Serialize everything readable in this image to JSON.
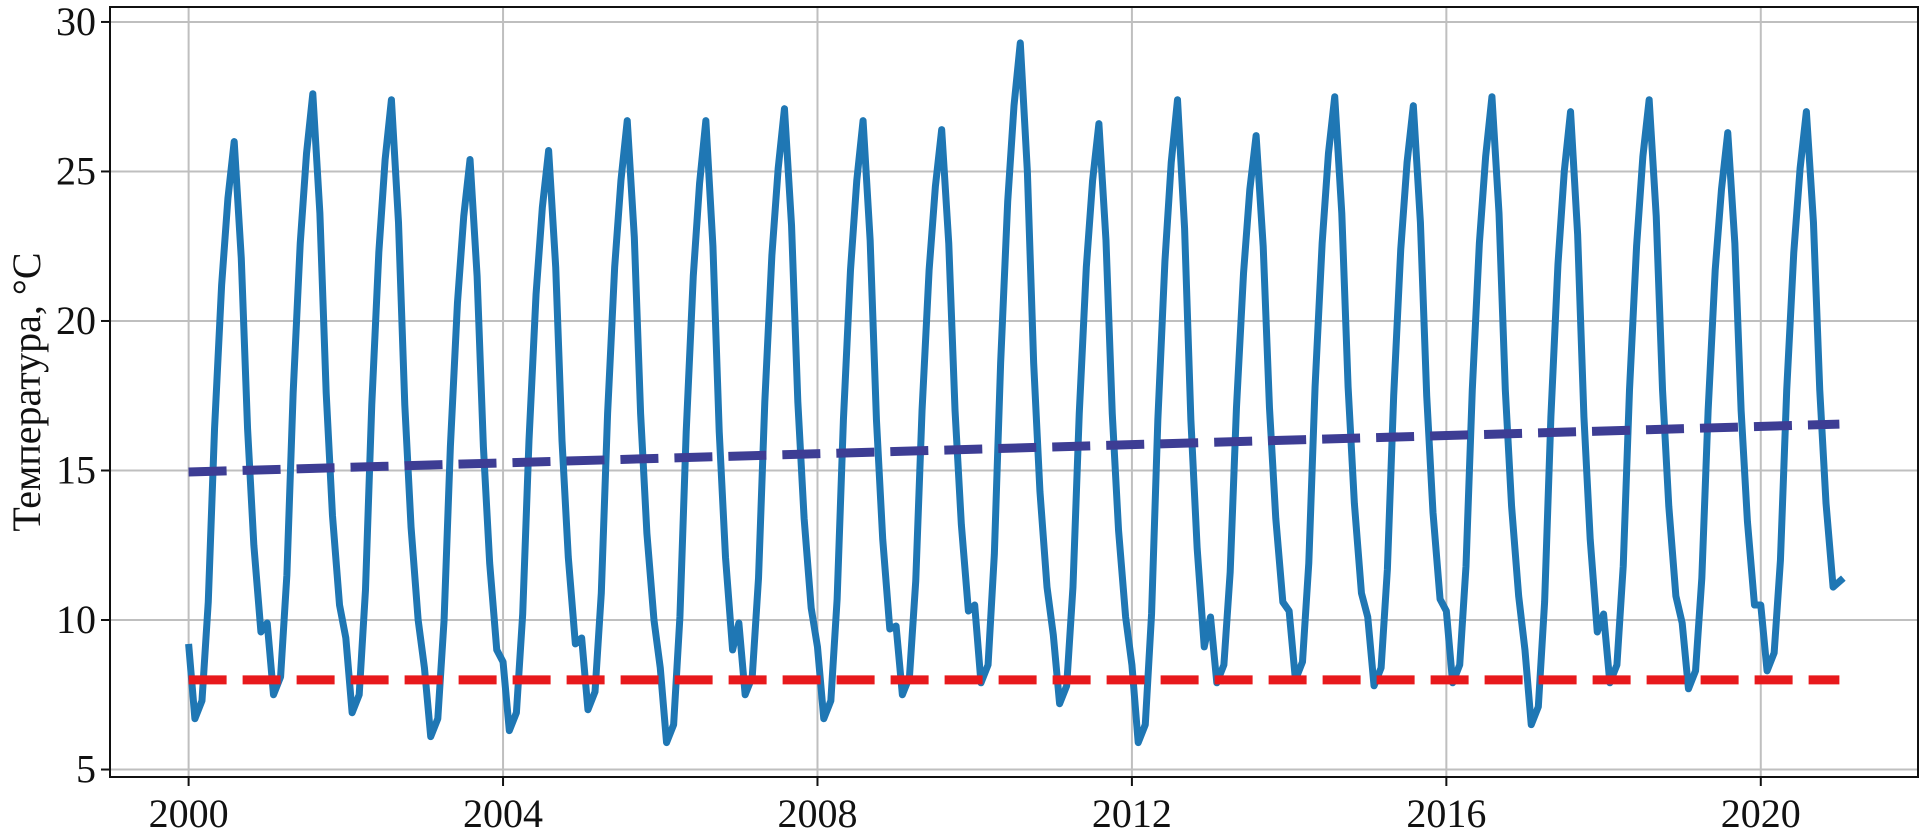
{
  "chart_data": {
    "type": "line",
    "ylabel": "Температура, °C",
    "xlim": [
      1999,
      2022
    ],
    "ylim": [
      4.75,
      30.5
    ],
    "xticks": [
      2000,
      2004,
      2008,
      2012,
      2016,
      2020
    ],
    "yticks": [
      5,
      10,
      15,
      20,
      25,
      30
    ],
    "grid": true,
    "series": [
      {
        "color": "#1f77b4",
        "dash": false,
        "x": [
          2000,
          2000.08,
          2000.17,
          2000.25,
          2000.33,
          2000.42,
          2000.5,
          2000.58,
          2000.67,
          2000.75,
          2000.83,
          2000.92,
          2001,
          2001.08,
          2001.17,
          2001.25,
          2001.33,
          2001.42,
          2001.5,
          2001.58,
          2001.67,
          2001.75,
          2001.83,
          2001.92,
          2002,
          2002.08,
          2002.17,
          2002.25,
          2002.33,
          2002.42,
          2002.5,
          2002.58,
          2002.67,
          2002.75,
          2002.83,
          2002.92,
          2003,
          2003.08,
          2003.17,
          2003.25,
          2003.33,
          2003.42,
          2003.5,
          2003.58,
          2003.67,
          2003.75,
          2003.83,
          2003.92,
          2004,
          2004.08,
          2004.17,
          2004.25,
          2004.33,
          2004.42,
          2004.5,
          2004.58,
          2004.67,
          2004.75,
          2004.83,
          2004.92,
          2005,
          2005.08,
          2005.17,
          2005.25,
          2005.33,
          2005.42,
          2005.5,
          2005.58,
          2005.67,
          2005.75,
          2005.83,
          2005.92,
          2006,
          2006.08,
          2006.17,
          2006.25,
          2006.33,
          2006.42,
          2006.5,
          2006.58,
          2006.67,
          2006.75,
          2006.83,
          2006.92,
          2007,
          2007.08,
          2007.17,
          2007.25,
          2007.33,
          2007.42,
          2007.5,
          2007.58,
          2007.67,
          2007.75,
          2007.83,
          2007.92,
          2008,
          2008.08,
          2008.17,
          2008.25,
          2008.33,
          2008.42,
          2008.5,
          2008.58,
          2008.67,
          2008.75,
          2008.83,
          2008.92,
          2009,
          2009.08,
          2009.17,
          2009.25,
          2009.33,
          2009.42,
          2009.5,
          2009.58,
          2009.67,
          2009.75,
          2009.83,
          2009.92,
          2010,
          2010.08,
          2010.17,
          2010.25,
          2010.33,
          2010.42,
          2010.5,
          2010.58,
          2010.67,
          2010.75,
          2010.83,
          2010.92,
          2011,
          2011.08,
          2011.17,
          2011.25,
          2011.33,
          2011.42,
          2011.5,
          2011.58,
          2011.67,
          2011.75,
          2011.83,
          2011.92,
          2012,
          2012.08,
          2012.17,
          2012.25,
          2012.33,
          2012.42,
          2012.5,
          2012.58,
          2012.67,
          2012.75,
          2012.83,
          2012.92,
          2013,
          2013.08,
          2013.17,
          2013.25,
          2013.33,
          2013.42,
          2013.5,
          2013.58,
          2013.67,
          2013.75,
          2013.83,
          2013.92,
          2014,
          2014.08,
          2014.17,
          2014.25,
          2014.33,
          2014.42,
          2014.5,
          2014.58,
          2014.67,
          2014.75,
          2014.83,
          2014.92,
          2015,
          2015.08,
          2015.17,
          2015.25,
          2015.33,
          2015.42,
          2015.5,
          2015.58,
          2015.67,
          2015.75,
          2015.83,
          2015.92,
          2016,
          2016.08,
          2016.17,
          2016.25,
          2016.33,
          2016.42,
          2016.5,
          2016.58,
          2016.67,
          2016.75,
          2016.83,
          2016.92,
          2017,
          2017.08,
          2017.17,
          2017.25,
          2017.33,
          2017.42,
          2017.5,
          2017.58,
          2017.67,
          2017.75,
          2017.83,
          2017.92,
          2018,
          2018.08,
          2018.17,
          2018.25,
          2018.33,
          2018.42,
          2018.5,
          2018.58,
          2018.67,
          2018.75,
          2018.83,
          2018.92,
          2019,
          2019.08,
          2019.17,
          2019.25,
          2019.33,
          2019.42,
          2019.5,
          2019.58,
          2019.67,
          2019.75,
          2019.83,
          2019.92,
          2020,
          2020.08,
          2020.17,
          2020.25,
          2020.33,
          2020.42,
          2020.5,
          2020.58,
          2020.67,
          2020.75,
          2020.83,
          2020.92,
          2021.05
        ],
        "values": [
          9.2,
          6.7,
          7.3,
          10.6,
          16.4,
          21.2,
          24.1,
          26.0,
          22.1,
          16.4,
          12.5,
          9.6,
          9.9,
          7.5,
          8.1,
          11.5,
          17.6,
          22.6,
          25.6,
          27.6,
          23.6,
          17.6,
          13.5,
          10.5,
          9.4,
          6.9,
          7.5,
          11.0,
          17.2,
          22.3,
          25.4,
          27.4,
          23.3,
          17.2,
          13.1,
          10.0,
          8.4,
          6.1,
          6.7,
          10.0,
          15.8,
          20.6,
          23.5,
          25.4,
          21.5,
          15.8,
          11.9,
          9.0,
          8.6,
          6.3,
          6.9,
          10.2,
          16.0,
          20.9,
          23.8,
          25.7,
          21.8,
          16.0,
          12.1,
          9.2,
          9.4,
          7.0,
          7.6,
          10.9,
          16.9,
          21.8,
          24.7,
          26.7,
          22.8,
          16.9,
          12.9,
          10.0,
          8.4,
          5.9,
          6.5,
          10.1,
          16.3,
          21.5,
          24.6,
          26.7,
          22.5,
          16.3,
          12.1,
          9.0,
          9.9,
          7.5,
          8.1,
          11.4,
          17.3,
          22.2,
          25.1,
          27.1,
          23.2,
          17.3,
          13.4,
          10.4,
          9.1,
          6.7,
          7.3,
          10.7,
          16.7,
          21.7,
          24.7,
          26.7,
          22.7,
          16.7,
          12.7,
          9.7,
          9.8,
          7.5,
          8.1,
          11.3,
          17.0,
          21.7,
          24.5,
          26.4,
          22.6,
          17.0,
          13.2,
          10.3,
          10.5,
          7.9,
          8.5,
          12.2,
          18.6,
          24.0,
          27.2,
          29.3,
          25.0,
          18.6,
          14.3,
          11.1,
          9.5,
          7.2,
          7.8,
          11.1,
          16.9,
          21.8,
          24.7,
          26.6,
          22.7,
          16.9,
          13.0,
          10.1,
          8.5,
          5.9,
          6.5,
          10.2,
          16.7,
          22.0,
          25.3,
          27.4,
          23.1,
          16.7,
          12.4,
          9.1,
          10.1,
          7.9,
          8.5,
          11.6,
          17.1,
          21.6,
          24.4,
          26.2,
          22.5,
          17.1,
          13.4,
          10.6,
          10.3,
          8.0,
          8.6,
          11.9,
          17.8,
          22.6,
          25.6,
          27.5,
          23.6,
          17.8,
          13.9,
          10.9,
          10.1,
          7.8,
          8.4,
          11.7,
          17.5,
          22.4,
          25.3,
          27.2,
          23.3,
          17.5,
          13.6,
          10.7,
          10.3,
          7.9,
          8.5,
          11.8,
          17.7,
          22.6,
          25.5,
          27.5,
          23.6,
          17.7,
          13.8,
          10.8,
          9.0,
          6.5,
          7.1,
          10.6,
          16.8,
          21.9,
          25.0,
          27.0,
          22.9,
          16.8,
          12.7,
          9.6,
          10.2,
          7.9,
          8.5,
          11.8,
          17.7,
          22.5,
          25.5,
          27.4,
          23.5,
          17.7,
          13.8,
          10.8,
          9.9,
          7.7,
          8.3,
          11.4,
          17.0,
          21.7,
          24.4,
          26.3,
          22.6,
          17.0,
          13.3,
          10.5,
          10.5,
          8.3,
          8.9,
          12.0,
          17.7,
          22.3,
          25.1,
          27.0,
          23.3,
          17.7,
          13.9,
          11.1,
          11.4
        ]
      },
      {
        "color": "#3d3d94",
        "dash": true,
        "x": [
          2000,
          2021
        ],
        "values": [
          14.95,
          16.55
        ]
      },
      {
        "color": "#e8191c",
        "dash": true,
        "x": [
          2000,
          2021
        ],
        "values": [
          8,
          8
        ]
      }
    ]
  }
}
